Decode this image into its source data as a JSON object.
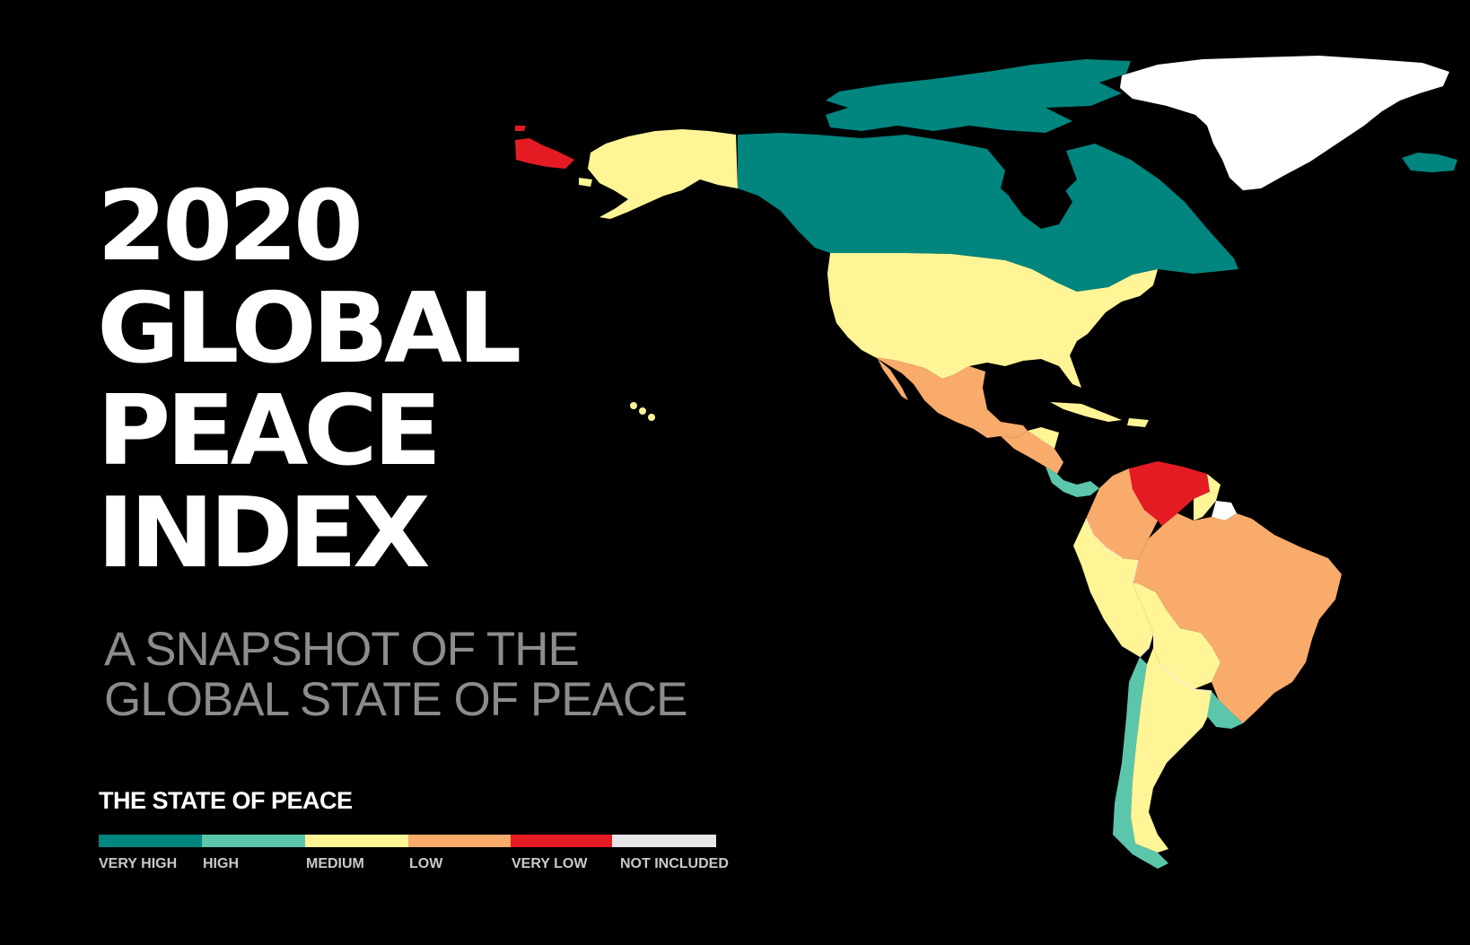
{
  "title": {
    "year": "2020",
    "line2": "GLOBAL",
    "line3": "PEACE",
    "line4": "INDEX"
  },
  "subtitle": {
    "line1": "A SNAPSHOT OF THE",
    "line2": "GLOBAL STATE OF PEACE"
  },
  "legend": {
    "title": "THE STATE OF PEACE",
    "items": [
      {
        "label": "VERY HIGH",
        "color": "#00857f"
      },
      {
        "label": "HIGH",
        "color": "#5cc6ab"
      },
      {
        "label": "MEDIUM",
        "color": "#fff596"
      },
      {
        "label": "LOW",
        "color": "#f8ab6b"
      },
      {
        "label": "VERY LOW",
        "color": "#e51b24"
      },
      {
        "label": "NOT INCLUDED",
        "color": "#e6e6e6"
      }
    ]
  },
  "map": {
    "regions": [
      {
        "name": "greenland",
        "state": "NOT INCLUDED"
      },
      {
        "name": "iceland",
        "state": "VERY HIGH"
      },
      {
        "name": "canada",
        "state": "VERY HIGH"
      },
      {
        "name": "alaska",
        "state": "MEDIUM"
      },
      {
        "name": "russia-far-east",
        "state": "VERY LOW"
      },
      {
        "name": "united-states",
        "state": "MEDIUM"
      },
      {
        "name": "hawaii",
        "state": "MEDIUM"
      },
      {
        "name": "mexico",
        "state": "LOW"
      },
      {
        "name": "cuba",
        "state": "MEDIUM"
      },
      {
        "name": "central-america",
        "state": "LOW"
      },
      {
        "name": "costa-rica-panama",
        "state": "HIGH"
      },
      {
        "name": "colombia",
        "state": "LOW"
      },
      {
        "name": "venezuela",
        "state": "VERY LOW"
      },
      {
        "name": "guyana-suriname",
        "state": "MEDIUM"
      },
      {
        "name": "french-guiana",
        "state": "NOT INCLUDED"
      },
      {
        "name": "ecuador-peru",
        "state": "MEDIUM"
      },
      {
        "name": "brazil",
        "state": "LOW"
      },
      {
        "name": "bolivia-paraguay",
        "state": "MEDIUM"
      },
      {
        "name": "chile",
        "state": "HIGH"
      },
      {
        "name": "argentina",
        "state": "MEDIUM"
      },
      {
        "name": "uruguay",
        "state": "HIGH"
      }
    ]
  }
}
